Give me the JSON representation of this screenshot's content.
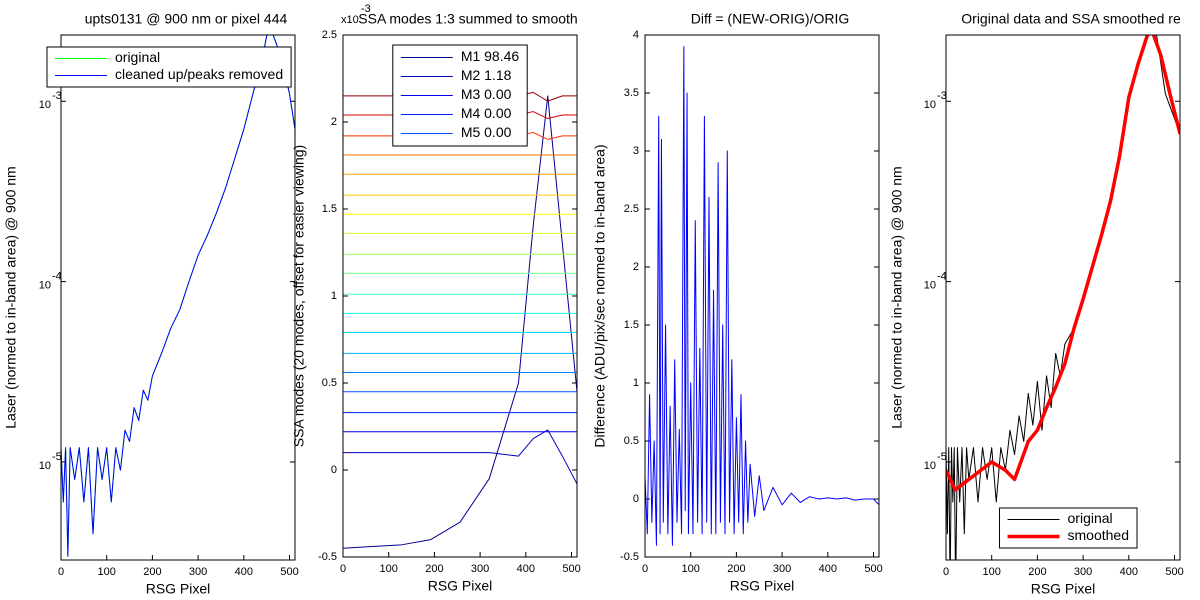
{
  "chart_data": [
    {
      "type": "line",
      "title": "upts0131 @ 900 nm or pixel 444",
      "xlabel": "RSG Pixel",
      "ylabel": "Laser (normed to in-band area) @ 900 nm",
      "xlim": [
        0,
        512
      ],
      "xticks": [
        0,
        100,
        200,
        300,
        400,
        500
      ],
      "ylog": true,
      "ylim": [
        2.86e-06,
        0.00233
      ],
      "yticks": [
        {
          "value": 1e-05,
          "label": "10",
          "exponent": "-5"
        },
        {
          "value": 0.0001,
          "label": "10",
          "exponent": "-4"
        },
        {
          "value": 0.001,
          "label": "10",
          "exponent": "-3"
        }
      ],
      "legend": "upper left",
      "series": [
        {
          "name": "original",
          "color": "#00ff00",
          "width": 1,
          "x": [
            0,
            5,
            10,
            15,
            20,
            30,
            40,
            50,
            60,
            70,
            80,
            90,
            100,
            110,
            120,
            130,
            140,
            150,
            160,
            170,
            180,
            190,
            200,
            220,
            240,
            260,
            280,
            300,
            320,
            340,
            360,
            380,
            400,
            420,
            440,
            450,
            460,
            480,
            500,
            512
          ],
          "values": [
            1.2e-05,
            6e-06,
            1.2e-05,
            3e-06,
            1.2e-05,
            8e-06,
            1.2e-05,
            6e-06,
            1.2e-05,
            4e-06,
            1.2e-05,
            8e-06,
            1.2e-05,
            6e-06,
            1.2e-05,
            9e-06,
            1.5e-05,
            1.3e-05,
            2e-05,
            1.7e-05,
            2.5e-05,
            2.2e-05,
            3e-05,
            4e-05,
            5.5e-05,
            7e-05,
            0.0001,
            0.00014,
            0.00018,
            0.00024,
            0.00033,
            0.00048,
            0.0007,
            0.0011,
            0.0017,
            0.0023,
            0.0025,
            0.0018,
            0.0011,
            0.0007
          ]
        },
        {
          "name": "cleaned up/peaks removed",
          "color": "#0000ff",
          "width": 1,
          "x": [
            0,
            5,
            10,
            15,
            20,
            30,
            40,
            50,
            60,
            70,
            80,
            90,
            100,
            110,
            120,
            130,
            140,
            150,
            160,
            170,
            180,
            190,
            200,
            220,
            240,
            260,
            280,
            300,
            320,
            340,
            360,
            380,
            400,
            420,
            440,
            450,
            460,
            480,
            500,
            512
          ],
          "values": [
            1.2e-05,
            6e-06,
            1.2e-05,
            3e-06,
            1.2e-05,
            8e-06,
            1.2e-05,
            6e-06,
            1.2e-05,
            4e-06,
            1.2e-05,
            8e-06,
            1.2e-05,
            6e-06,
            1.2e-05,
            9e-06,
            1.5e-05,
            1.3e-05,
            2e-05,
            1.7e-05,
            2.5e-05,
            2.2e-05,
            3e-05,
            4e-05,
            5.5e-05,
            7e-05,
            0.0001,
            0.00014,
            0.00018,
            0.00024,
            0.00033,
            0.00048,
            0.0007,
            0.0011,
            0.0017,
            0.0023,
            0.0025,
            0.0018,
            0.0011,
            0.0007
          ]
        }
      ]
    },
    {
      "type": "line",
      "title": "SSA modes 1:3 summed to smooth",
      "y_offset_label": "x10",
      "y_offset_exponent": "-3",
      "xlabel": "RSG Pixel",
      "ylabel": "SSA modes (20 modes, offset for easier viewing)",
      "xlim": [
        0,
        512
      ],
      "xticks": [
        0,
        100,
        200,
        300,
        400,
        500
      ],
      "ylim": [
        -0.5,
        2.5
      ],
      "yticks": [
        -0.5,
        0,
        0.5,
        1,
        1.5,
        2,
        2.5
      ],
      "legend": "upper center",
      "x": [
        0,
        64,
        128,
        192,
        256,
        320,
        384,
        416,
        448,
        480,
        512
      ],
      "series": [
        {
          "name": "M1 98.46",
          "color": "#000090",
          "values": [
            -0.45,
            -0.44,
            -0.43,
            -0.4,
            -0.3,
            -0.05,
            0.5,
            1.4,
            2.15,
            1.3,
            0.45
          ]
        },
        {
          "name": "M2 1.18",
          "color": "#0000c0",
          "values": [
            0.1,
            0.1,
            0.1,
            0.1,
            0.1,
            0.1,
            0.08,
            0.18,
            0.23,
            0.08,
            -0.08
          ]
        },
        {
          "name": "M3 0.00",
          "color": "#0000f0",
          "values": [
            0.22,
            0.22,
            0.22,
            0.22,
            0.22,
            0.22,
            0.22,
            0.22,
            0.22,
            0.22,
            0.22
          ]
        },
        {
          "name": "M4 0.00",
          "color": "#0020ff",
          "values": [
            0.33,
            0.33,
            0.33,
            0.33,
            0.33,
            0.33,
            0.33,
            0.33,
            0.33,
            0.33,
            0.33
          ]
        },
        {
          "name": "M5 0.00",
          "color": "#0050ff",
          "values": [
            0.45,
            0.45,
            0.45,
            0.45,
            0.45,
            0.45,
            0.45,
            0.45,
            0.45,
            0.45,
            0.45
          ]
        },
        {
          "color": "#0080ff",
          "values": [
            0.56,
            0.56,
            0.56,
            0.56,
            0.56,
            0.56,
            0.56,
            0.56,
            0.56,
            0.56,
            0.56
          ]
        },
        {
          "color": "#00b0ff",
          "values": [
            0.67,
            0.67,
            0.67,
            0.67,
            0.67,
            0.67,
            0.67,
            0.67,
            0.67,
            0.67,
            0.67
          ]
        },
        {
          "color": "#00e0ff",
          "values": [
            0.79,
            0.79,
            0.79,
            0.79,
            0.79,
            0.79,
            0.79,
            0.79,
            0.79,
            0.79,
            0.79
          ]
        },
        {
          "color": "#10ffef",
          "values": [
            0.9,
            0.9,
            0.9,
            0.9,
            0.9,
            0.9,
            0.9,
            0.9,
            0.9,
            0.9,
            0.9
          ]
        },
        {
          "color": "#40ffbf",
          "values": [
            1.01,
            1.01,
            1.01,
            1.01,
            1.01,
            1.01,
            1.01,
            1.01,
            1.01,
            1.01,
            1.01
          ]
        },
        {
          "color": "#70ff8f",
          "values": [
            1.13,
            1.13,
            1.13,
            1.13,
            1.13,
            1.13,
            1.13,
            1.13,
            1.13,
            1.13,
            1.13
          ]
        },
        {
          "color": "#a0ff60",
          "values": [
            1.24,
            1.24,
            1.24,
            1.24,
            1.24,
            1.24,
            1.24,
            1.24,
            1.24,
            1.24,
            1.24
          ]
        },
        {
          "color": "#d0ff30",
          "values": [
            1.36,
            1.36,
            1.36,
            1.36,
            1.36,
            1.36,
            1.36,
            1.36,
            1.36,
            1.36,
            1.36
          ]
        },
        {
          "color": "#ffff00",
          "values": [
            1.47,
            1.47,
            1.47,
            1.47,
            1.47,
            1.47,
            1.47,
            1.47,
            1.47,
            1.47,
            1.47
          ]
        },
        {
          "color": "#ffd000",
          "values": [
            1.58,
            1.58,
            1.58,
            1.58,
            1.58,
            1.58,
            1.58,
            1.58,
            1.58,
            1.58,
            1.58
          ]
        },
        {
          "color": "#ffa000",
          "values": [
            1.7,
            1.7,
            1.7,
            1.7,
            1.7,
            1.7,
            1.7,
            1.7,
            1.7,
            1.7,
            1.7
          ]
        },
        {
          "color": "#ff7000",
          "values": [
            1.81,
            1.81,
            1.81,
            1.81,
            1.81,
            1.81,
            1.81,
            1.81,
            1.81,
            1.81,
            1.81
          ]
        },
        {
          "color": "#ff3000",
          "values": [
            1.92,
            1.92,
            1.92,
            1.92,
            1.92,
            1.92,
            1.92,
            1.94,
            1.9,
            1.92,
            1.92
          ]
        },
        {
          "color": "#d00000",
          "values": [
            2.04,
            2.04,
            2.04,
            2.04,
            2.04,
            2.04,
            2.04,
            2.06,
            2.02,
            2.04,
            2.04
          ]
        },
        {
          "color": "#900000",
          "values": [
            2.15,
            2.15,
            2.15,
            2.15,
            2.15,
            2.15,
            2.15,
            2.17,
            2.12,
            2.15,
            2.15
          ]
        }
      ]
    },
    {
      "type": "line",
      "title": "Diff = (NEW-ORIG)/ORIG",
      "xlabel": "RSG Pixel",
      "ylabel": "Difference (ADU/pix/sec normed to in-band area)",
      "xlim": [
        0,
        512
      ],
      "xticks": [
        0,
        100,
        200,
        300,
        400,
        500
      ],
      "ylim": [
        -0.5,
        4
      ],
      "yticks": [
        -0.5,
        0,
        0.5,
        1,
        1.5,
        2,
        2.5,
        3,
        3.5,
        4
      ],
      "series": [
        {
          "color": "#0000ff",
          "x": [
            0,
            5,
            10,
            15,
            20,
            25,
            30,
            33,
            36,
            40,
            45,
            50,
            55,
            60,
            65,
            70,
            75,
            80,
            85,
            88,
            92,
            95,
            100,
            105,
            110,
            115,
            120,
            125,
            130,
            135,
            140,
            145,
            150,
            155,
            160,
            165,
            170,
            175,
            180,
            185,
            190,
            195,
            200,
            205,
            210,
            215,
            220,
            225,
            230,
            240,
            250,
            260,
            280,
            300,
            320,
            340,
            360,
            380,
            400,
            420,
            440,
            460,
            480,
            500,
            512
          ],
          "values": [
            0.2,
            -0.3,
            0.9,
            -0.2,
            0.5,
            -0.4,
            3.3,
            -0.3,
            3.1,
            -0.2,
            1.5,
            -0.3,
            0.8,
            -0.4,
            1.2,
            -0.2,
            0.6,
            -0.3,
            3.9,
            -0.1,
            3.5,
            -0.3,
            1.0,
            -0.3,
            2.4,
            -0.2,
            1.3,
            -0.3,
            3.3,
            -0.2,
            2.6,
            -0.3,
            1.8,
            -0.3,
            2.9,
            -0.2,
            1.5,
            -0.3,
            3.0,
            -0.2,
            1.2,
            -0.3,
            0.7,
            -0.2,
            0.9,
            -0.3,
            0.5,
            -0.2,
            0.3,
            -0.15,
            0.2,
            -0.1,
            0.1,
            -0.05,
            0.05,
            -0.03,
            0.02,
            0.0,
            0.01,
            0.0,
            0.01,
            -0.01,
            0.0,
            0.0,
            -0.05
          ]
        }
      ]
    },
    {
      "type": "line",
      "title": "Original data and SSA smoothed re",
      "xlabel": "RSG Pixel",
      "ylabel": "Laser (normed to in-band area) @ 900 nm",
      "xlim": [
        0,
        512
      ],
      "xticks": [
        0,
        100,
        200,
        300,
        400,
        500
      ],
      "ylog": true,
      "ylim": [
        2.86e-06,
        0.00233
      ],
      "yticks": [
        {
          "value": 1e-05,
          "label": "10",
          "exponent": "-5"
        },
        {
          "value": 0.0001,
          "label": "10",
          "exponent": "-4"
        },
        {
          "value": 0.001,
          "label": "10",
          "exponent": "-3"
        }
      ],
      "legend": "lower right",
      "series": [
        {
          "name": "original",
          "color": "#000000",
          "width": 1,
          "x": [
            0,
            3,
            6,
            9,
            12,
            15,
            18,
            21,
            25,
            30,
            35,
            40,
            45,
            50,
            60,
            70,
            80,
            90,
            100,
            110,
            120,
            130,
            140,
            150,
            160,
            170,
            180,
            190,
            200,
            210,
            220,
            230,
            240,
            250,
            260,
            280,
            300,
            320,
            340,
            360,
            380,
            400,
            420,
            440,
            450,
            460,
            480,
            500,
            512
          ],
          "values": [
            1.2e-05,
            4e-06,
            1.2e-05,
            2e-06,
            1.2e-05,
            6e-06,
            1.2e-05,
            2e-06,
            1.2e-05,
            6e-06,
            1.2e-05,
            4e-06,
            1.2e-05,
            8e-06,
            1.2e-05,
            6e-06,
            1.2e-05,
            8e-06,
            1.2e-05,
            6e-06,
            1.2e-05,
            9e-06,
            1.5e-05,
            1.1e-05,
            1.8e-05,
            1.3e-05,
            2.4e-05,
            1.6e-05,
            2.8e-05,
            1.5e-05,
            3e-05,
            2e-05,
            4e-05,
            3e-05,
            4.5e-05,
            5.5e-05,
            8e-05,
            0.00012,
            0.00018,
            0.00028,
            0.0005,
            0.00105,
            0.0016,
            0.0023,
            0.0025,
            0.0024,
            0.0011,
            0.0008,
            0.00066
          ]
        },
        {
          "name": "smoothed",
          "color": "#ff0000",
          "width": 3.5,
          "x": [
            0,
            20,
            50,
            100,
            130,
            150,
            180,
            200,
            220,
            240,
            260,
            280,
            300,
            320,
            340,
            360,
            380,
            400,
            420,
            440,
            450,
            470,
            490,
            512
          ],
          "values": [
            9e-06,
            7e-06,
            8e-06,
            1e-05,
            9e-06,
            8e-06,
            1.3e-05,
            1.5e-05,
            2e-05,
            2.6e-05,
            3.5e-05,
            5.5e-05,
            8e-05,
            0.00012,
            0.00018,
            0.00028,
            0.0005,
            0.00105,
            0.0016,
            0.0023,
            0.0025,
            0.0018,
            0.0011,
            0.00066
          ]
        }
      ]
    }
  ]
}
